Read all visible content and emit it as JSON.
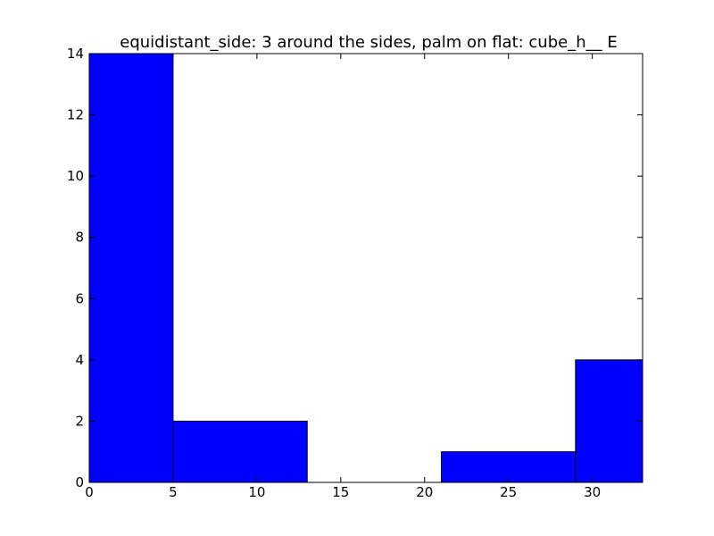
{
  "chart_data": {
    "type": "bar",
    "title": "equidistant_side: 3 around the sides, palm on flat: cube_h__ E",
    "xlabel": "",
    "ylabel": "",
    "xlim": [
      0,
      33
    ],
    "ylim": [
      0,
      14
    ],
    "xticks": [
      0,
      5,
      10,
      15,
      20,
      25,
      30
    ],
    "yticks": [
      0,
      2,
      4,
      6,
      8,
      10,
      12,
      14
    ],
    "bars": [
      {
        "x0": 0,
        "x1": 5,
        "value": 14
      },
      {
        "x0": 5,
        "x1": 13,
        "value": 2
      },
      {
        "x0": 13,
        "x1": 21,
        "value": 0
      },
      {
        "x0": 21,
        "x1": 29,
        "value": 1
      },
      {
        "x0": 29,
        "x1": 33,
        "value": 4
      }
    ],
    "bar_color": "#0000ff",
    "edge_color": "#000000",
    "grid": false,
    "legend": "none"
  }
}
